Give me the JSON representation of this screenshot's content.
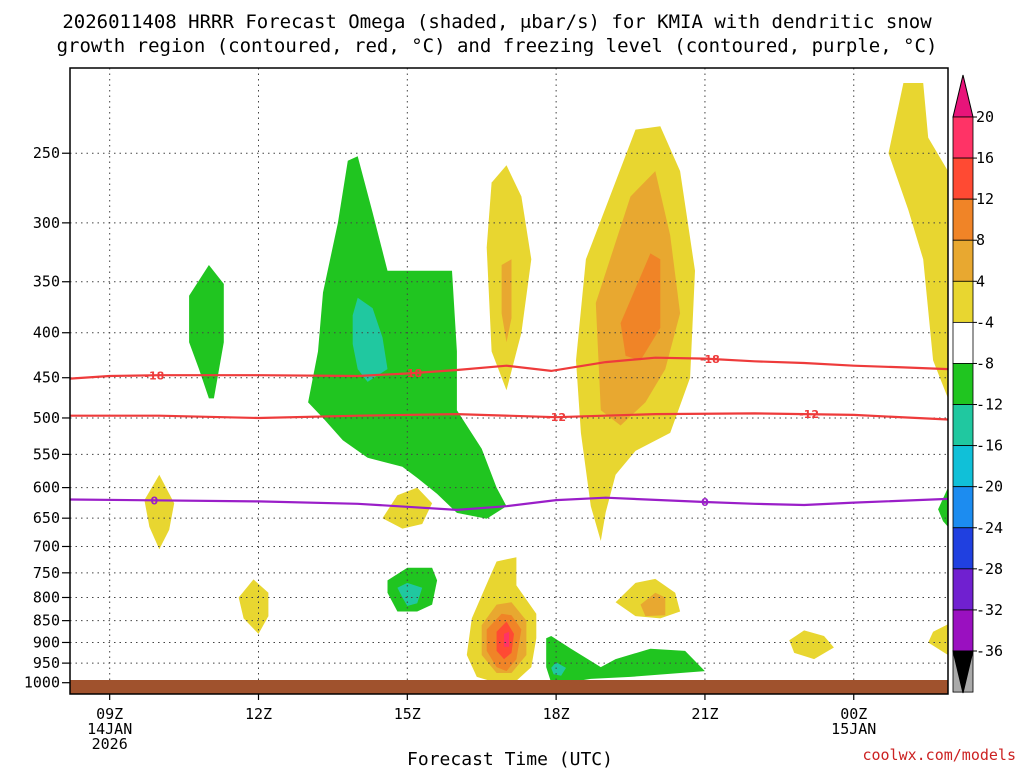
{
  "chart_data": {
    "type": "heatmap",
    "title_line1": "2026011408 HRRR Forecast Omega (shaded, μbar/s) for KMIA with dendritic snow",
    "title_line2": "growth region (contoured, red, °C) and freezing level (contoured, purple, °C)",
    "xlabel": "Forecast Time (UTC)",
    "credit": "coolwx.com/models",
    "x_ticks": [
      {
        "hour": 9,
        "lines": [
          "09Z",
          "14JAN",
          "2026"
        ]
      },
      {
        "hour": 12,
        "lines": [
          "12Z"
        ]
      },
      {
        "hour": 15,
        "lines": [
          "15Z"
        ]
      },
      {
        "hour": 18,
        "lines": [
          "18Z"
        ]
      },
      {
        "hour": 21,
        "lines": [
          "21Z"
        ]
      },
      {
        "hour": 24,
        "lines": [
          "00Z",
          "15JAN"
        ]
      }
    ],
    "x_range": [
      8.2,
      25.9
    ],
    "y_ticks": [
      250,
      300,
      350,
      400,
      450,
      500,
      550,
      600,
      650,
      700,
      750,
      800,
      850,
      900,
      950,
      1000
    ],
    "y_range": [
      200,
      1030
    ],
    "colorbar": {
      "labels": [
        "20",
        "16",
        "12",
        "8",
        "4",
        "-4",
        "-8",
        "-12",
        "-16",
        "-20",
        "-24",
        "-28",
        "-32",
        "-36"
      ],
      "colors": [
        "#ff3366",
        "#ff4a33",
        "#f08427",
        "#e8a830",
        "#e8d630",
        "#ffffff",
        "#20c520",
        "#20c8a0",
        "#10c0d8",
        "#1c8cf0",
        "#2040e0",
        "#7020d0",
        "#9a10c0",
        "#aaaaaa"
      ],
      "top_arrow_color": "#e8147a",
      "bottom_arrow_color": "#000000"
    },
    "dgz_contours": [
      {
        "label": "-18",
        "points": [
          [
            8.2,
            451
          ],
          [
            9,
            448
          ],
          [
            10,
            447
          ],
          [
            12,
            447
          ],
          [
            14,
            448
          ],
          [
            15,
            445
          ],
          [
            16,
            441
          ],
          [
            17,
            436
          ],
          [
            17.9,
            442
          ],
          [
            19,
            432
          ],
          [
            20,
            427
          ],
          [
            21,
            428
          ],
          [
            22,
            431
          ],
          [
            23,
            433
          ],
          [
            24,
            436
          ],
          [
            25,
            438
          ],
          [
            25.9,
            440
          ]
        ],
        "label_hours": [
          9.9,
          15.1,
          21.1
        ]
      },
      {
        "label": "-12",
        "points": [
          [
            8.2,
            497
          ],
          [
            10,
            497
          ],
          [
            12,
            500
          ],
          [
            14,
            497
          ],
          [
            16,
            495
          ],
          [
            18,
            499
          ],
          [
            20,
            495
          ],
          [
            22,
            494
          ],
          [
            24,
            496
          ],
          [
            25.9,
            502
          ]
        ],
        "label_hours": [
          18.0,
          23.1
        ]
      }
    ],
    "freezing_contour": {
      "label": "0",
      "points": [
        [
          8.2,
          619
        ],
        [
          12,
          622
        ],
        [
          14,
          626
        ],
        [
          15,
          631
        ],
        [
          16,
          636
        ],
        [
          17,
          630
        ],
        [
          18,
          620
        ],
        [
          19,
          616
        ],
        [
          21,
          623
        ],
        [
          22,
          626
        ],
        [
          23,
          628
        ],
        [
          24,
          624
        ],
        [
          25.9,
          618
        ]
      ],
      "label_hours": [
        9.9,
        21.0
      ]
    },
    "omega_regions": [
      {
        "value": 4,
        "points": [
          [
            25,
            208
          ],
          [
            25.4,
            208
          ],
          [
            25.5,
            240
          ],
          [
            25.9,
            262
          ],
          [
            25.9,
            475
          ],
          [
            25.6,
            430
          ],
          [
            25.4,
            330
          ],
          [
            25.1,
            290
          ],
          [
            24.7,
            250
          ]
        ]
      },
      {
        "value": 4,
        "points": [
          [
            25.6,
            875
          ],
          [
            25.9,
            858
          ],
          [
            25.9,
            930
          ],
          [
            25.5,
            900
          ]
        ]
      },
      {
        "value": 4,
        "points": [
          [
            16.7,
            270
          ],
          [
            17.0,
            258
          ],
          [
            17.3,
            280
          ],
          [
            17.5,
            330
          ],
          [
            17.3,
            400
          ],
          [
            17.0,
            465
          ],
          [
            16.7,
            420
          ],
          [
            16.6,
            320
          ]
        ]
      },
      {
        "value": 8,
        "points": [
          [
            16.9,
            335
          ],
          [
            17.1,
            330
          ],
          [
            17.1,
            385
          ],
          [
            17.0,
            410
          ],
          [
            16.9,
            380
          ]
        ]
      },
      {
        "value": 4,
        "points": [
          [
            18.6,
            330
          ],
          [
            19.6,
            235
          ],
          [
            20.1,
            233
          ],
          [
            20.5,
            262
          ],
          [
            20.8,
            340
          ],
          [
            20.7,
            450
          ],
          [
            20.3,
            520
          ],
          [
            19.6,
            545
          ],
          [
            19.2,
            580
          ],
          [
            19.0,
            640
          ],
          [
            18.9,
            690
          ],
          [
            18.7,
            630
          ],
          [
            18.5,
            520
          ],
          [
            18.4,
            430
          ]
        ]
      },
      {
        "value": 8,
        "points": [
          [
            18.8,
            370
          ],
          [
            19.5,
            280
          ],
          [
            20.0,
            262
          ],
          [
            20.3,
            310
          ],
          [
            20.5,
            380
          ],
          [
            20.2,
            440
          ],
          [
            19.8,
            480
          ],
          [
            19.3,
            510
          ],
          [
            18.9,
            490
          ]
        ]
      },
      {
        "value": 12,
        "points": [
          [
            19.3,
            390
          ],
          [
            19.9,
            325
          ],
          [
            20.1,
            330
          ],
          [
            20.1,
            395
          ],
          [
            19.7,
            430
          ],
          [
            19.4,
            425
          ]
        ]
      },
      {
        "value": 4,
        "points": [
          [
            9.7,
            620
          ],
          [
            10.0,
            580
          ],
          [
            10.3,
            625
          ],
          [
            10.2,
            670
          ],
          [
            10.0,
            705
          ],
          [
            9.8,
            665
          ]
        ]
      },
      {
        "value": 4,
        "points": [
          [
            14.5,
            650
          ],
          [
            14.8,
            612
          ],
          [
            15.2,
            600
          ],
          [
            15.5,
            625
          ],
          [
            15.3,
            660
          ],
          [
            14.9,
            668
          ]
        ]
      },
      {
        "value": 4,
        "points": [
          [
            11.6,
            800
          ],
          [
            11.9,
            763
          ],
          [
            12.2,
            790
          ],
          [
            12.2,
            840
          ],
          [
            12.0,
            880
          ],
          [
            11.7,
            845
          ]
        ]
      },
      {
        "value": 4,
        "points": [
          [
            19.2,
            810
          ],
          [
            19.6,
            770
          ],
          [
            20.0,
            762
          ],
          [
            20.4,
            790
          ],
          [
            20.5,
            830
          ],
          [
            20.1,
            845
          ],
          [
            19.6,
            840
          ]
        ]
      },
      {
        "value": 8,
        "points": [
          [
            19.7,
            815
          ],
          [
            20.0,
            790
          ],
          [
            20.2,
            800
          ],
          [
            20.2,
            838
          ],
          [
            19.8,
            840
          ]
        ]
      },
      {
        "value": 4,
        "points": [
          [
            22.7,
            895
          ],
          [
            23.0,
            872
          ],
          [
            23.4,
            885
          ],
          [
            23.6,
            912
          ],
          [
            23.2,
            940
          ],
          [
            22.8,
            925
          ]
        ]
      },
      {
        "value": 4,
        "points": [
          [
            16.3,
            845
          ],
          [
            16.7,
            750
          ],
          [
            16.8,
            728
          ],
          [
            17.2,
            720
          ],
          [
            17.2,
            775
          ],
          [
            17.6,
            835
          ],
          [
            17.6,
            890
          ],
          [
            17.5,
            960
          ],
          [
            17.2,
            995
          ],
          [
            16.8,
            1000
          ],
          [
            16.4,
            985
          ],
          [
            16.2,
            930
          ]
        ]
      },
      {
        "value": 8,
        "points": [
          [
            16.5,
            860
          ],
          [
            16.8,
            815
          ],
          [
            17.1,
            810
          ],
          [
            17.4,
            850
          ],
          [
            17.4,
            930
          ],
          [
            17.1,
            975
          ],
          [
            16.8,
            975
          ],
          [
            16.5,
            930
          ]
        ]
      },
      {
        "value": 12,
        "points": [
          [
            16.6,
            870
          ],
          [
            16.9,
            835
          ],
          [
            17.1,
            838
          ],
          [
            17.3,
            870
          ],
          [
            17.2,
            940
          ],
          [
            17.0,
            970
          ],
          [
            16.8,
            960
          ],
          [
            16.6,
            920
          ]
        ]
      },
      {
        "value": 16,
        "points": [
          [
            16.8,
            875
          ],
          [
            17.0,
            852
          ],
          [
            17.15,
            880
          ],
          [
            17.1,
            925
          ],
          [
            16.95,
            940
          ],
          [
            16.8,
            920
          ]
        ]
      },
      {
        "value": 20,
        "points": [
          [
            16.95,
            880
          ],
          [
            17.05,
            875
          ],
          [
            17.05,
            910
          ],
          [
            16.95,
            910
          ]
        ]
      },
      {
        "value": -4,
        "points": [
          [
            10.6,
            363
          ],
          [
            11.0,
            335
          ],
          [
            11.3,
            352
          ],
          [
            11.3,
            410
          ],
          [
            11.1,
            475
          ],
          [
            11.0,
            475
          ],
          [
            10.8,
            440
          ],
          [
            10.6,
            410
          ]
        ]
      },
      {
        "value": -4,
        "points": [
          [
            13.0,
            480
          ],
          [
            13.2,
            420
          ],
          [
            13.3,
            360
          ],
          [
            13.6,
            300
          ],
          [
            13.8,
            255
          ],
          [
            14.0,
            252
          ],
          [
            14.3,
            292
          ],
          [
            14.6,
            340
          ],
          [
            15.9,
            340
          ],
          [
            16.0,
            420
          ],
          [
            16.0,
            490
          ],
          [
            16.5,
            542
          ],
          [
            16.8,
            600
          ],
          [
            17.0,
            630
          ],
          [
            16.6,
            651
          ],
          [
            16.0,
            641
          ],
          [
            15.6,
            610
          ],
          [
            15.2,
            585
          ],
          [
            14.9,
            568
          ],
          [
            14.2,
            555
          ],
          [
            13.7,
            530
          ],
          [
            13.3,
            500
          ]
        ]
      },
      {
        "value": -8,
        "points": [
          [
            13.9,
            382
          ],
          [
            14.0,
            365
          ],
          [
            14.3,
            375
          ],
          [
            14.5,
            405
          ],
          [
            14.6,
            440
          ],
          [
            14.2,
            455
          ],
          [
            14.0,
            440
          ],
          [
            13.9,
            412
          ]
        ]
      },
      {
        "value": -4,
        "points": [
          [
            14.6,
            765
          ],
          [
            15.0,
            740
          ],
          [
            15.5,
            740
          ],
          [
            15.6,
            765
          ],
          [
            15.5,
            815
          ],
          [
            15.2,
            830
          ],
          [
            14.8,
            830
          ],
          [
            14.6,
            790
          ]
        ]
      },
      {
        "value": -8,
        "points": [
          [
            14.8,
            780
          ],
          [
            15.0,
            770
          ],
          [
            15.3,
            780
          ],
          [
            15.2,
            812
          ],
          [
            15.0,
            818
          ],
          [
            14.9,
            800
          ]
        ]
      },
      {
        "value": -4,
        "points": [
          [
            17.8,
            960
          ],
          [
            17.8,
            890
          ],
          [
            17.9,
            885
          ],
          [
            18.3,
            915
          ],
          [
            18.9,
            960
          ],
          [
            19.2,
            940
          ],
          [
            19.9,
            915
          ],
          [
            20.6,
            920
          ],
          [
            21.0,
            970
          ],
          [
            19.5,
            985
          ],
          [
            18.7,
            990
          ],
          [
            18.2,
            1000
          ],
          [
            17.9,
            1000
          ]
        ]
      },
      {
        "value": -8,
        "points": [
          [
            17.9,
            962
          ],
          [
            18.0,
            948
          ],
          [
            18.2,
            962
          ],
          [
            18.1,
            982
          ],
          [
            17.95,
            978
          ]
        ]
      },
      {
        "value": -4,
        "points": [
          [
            25.7,
            635
          ],
          [
            25.9,
            600
          ],
          [
            25.9,
            665
          ],
          [
            25.8,
            655
          ]
        ]
      }
    ]
  }
}
